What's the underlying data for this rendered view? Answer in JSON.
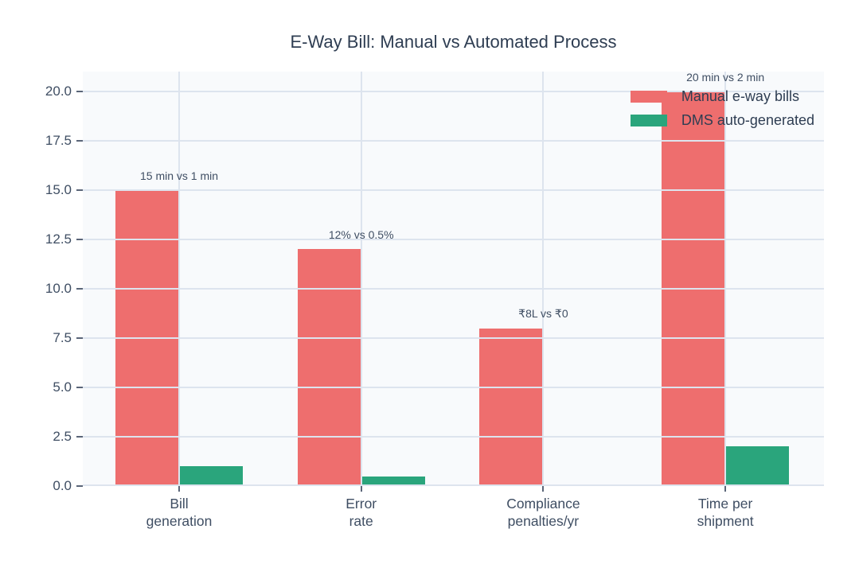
{
  "chart_data": {
    "type": "bar",
    "title": "E-Way Bill: Manual vs Automated Process",
    "categories": [
      "Bill\ngeneration",
      "Error\nrate",
      "Compliance\npenalties/yr",
      "Time per\nshipment"
    ],
    "series": [
      {
        "name": "Manual e-way bills",
        "color": "#ee6e6e",
        "values": [
          15,
          12,
          8,
          20
        ]
      },
      {
        "name": "DMS auto-generated",
        "color": "#2aa57c",
        "values": [
          1,
          0.5,
          0,
          2
        ]
      }
    ],
    "annotations": [
      "15 min vs 1 min",
      "12% vs 0.5%",
      "₹8L vs ₹0",
      "20 min vs 2 min"
    ],
    "ylim": [
      0,
      21
    ],
    "yticks": [
      0,
      2.5,
      5,
      7.5,
      10,
      12.5,
      15,
      17.5,
      20
    ],
    "ytick_labels": [
      "0.0",
      "2.5",
      "5.0",
      "7.5",
      "10.0",
      "12.5",
      "15.0",
      "17.5",
      "20.0"
    ],
    "grid": true,
    "legend_position": "top-right",
    "colors": {
      "plot_background": "#f8fafc",
      "gridline": "#dde4ee",
      "tick_text": "#3f4e63",
      "title_text": "#2e3d52"
    }
  }
}
